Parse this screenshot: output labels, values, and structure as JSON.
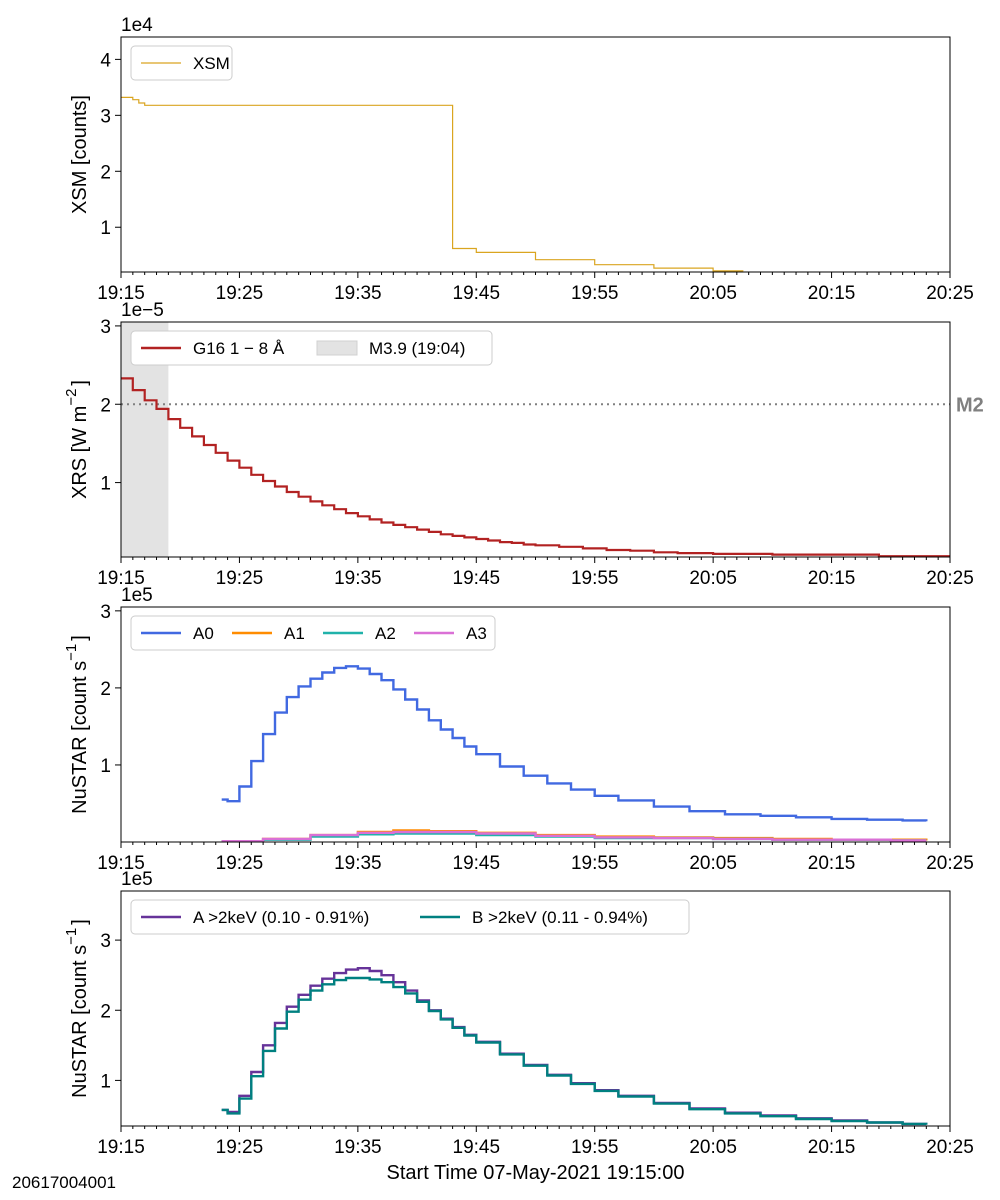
{
  "figure": {
    "xlabel": "Start Time 07-May-2021 19:15:00",
    "id_label": "20617004001",
    "x_tick_labels": [
      "19:15",
      "19:25",
      "19:35",
      "19:45",
      "19:55",
      "20:05",
      "20:15",
      "20:25"
    ]
  },
  "chart_data": [
    {
      "type": "line",
      "ylabel": "XSM [counts]",
      "exponent_label": "1e4",
      "xlim": [
        "19:15",
        "20:25"
      ],
      "ylim": [
        0.2,
        4.4
      ],
      "y_ticks": [
        1,
        2,
        3,
        4
      ],
      "y_tick_labels": [
        "1",
        "2",
        "3",
        "4"
      ],
      "legend": {
        "position": "top-left",
        "entries": [
          {
            "label": "XSM",
            "color": "#DAA520"
          }
        ]
      },
      "series": [
        {
          "name": "XSM",
          "color": "#DAA520",
          "line_width": 1.2,
          "step": true,
          "x": [
            "19:15",
            "19:16",
            "19:16.5",
            "19:17",
            "19:17.5",
            "19:43",
            "19:43",
            "19:45",
            "19:50",
            "19:55",
            "20:00",
            "20:05",
            "20:07.5"
          ],
          "y": [
            3.32,
            3.28,
            3.22,
            3.18,
            3.18,
            3.18,
            0.62,
            0.55,
            0.42,
            0.33,
            0.27,
            0.22,
            0.21
          ]
        }
      ]
    },
    {
      "type": "line",
      "ylabel": "XRS [W m^-2]",
      "ylabel_parts": {
        "main": "XRS [W m",
        "exp": "−2",
        "close": "]"
      },
      "exponent_label": "1e−5",
      "xlim": [
        "19:15",
        "20:25"
      ],
      "ylim": [
        0.05,
        3.05
      ],
      "y_ticks": [
        1,
        2,
        3
      ],
      "y_tick_labels": [
        "1",
        "2",
        "3"
      ],
      "shaded_region": {
        "x": [
          "19:15",
          "19:19"
        ],
        "label": "M3.9 (19:04)",
        "color": "#e3e3e3"
      },
      "threshold": {
        "y": 2.0,
        "label": "M2",
        "color": "#808080"
      },
      "legend": {
        "position": "top-left",
        "entries": [
          {
            "label": "G16 1 − 8 Å",
            "color": "#B22222",
            "kind": "line"
          },
          {
            "label": "M3.9 (19:04)",
            "color": "#e3e3e3",
            "kind": "patch"
          }
        ]
      },
      "series": [
        {
          "name": "G16 1 − 8 Å",
          "color": "#B22222",
          "line_width": 2.2,
          "step": true,
          "x": [
            "19:15",
            "19:16",
            "19:17",
            "19:18",
            "19:19",
            "19:20",
            "19:21",
            "19:22",
            "19:23",
            "19:24",
            "19:25",
            "19:26",
            "19:27",
            "19:28",
            "19:29",
            "19:30",
            "19:31",
            "19:32",
            "19:33",
            "19:34",
            "19:35",
            "19:36",
            "19:37",
            "19:38",
            "19:39",
            "19:40",
            "19:41",
            "19:42",
            "19:43",
            "19:44",
            "19:45",
            "19:46",
            "19:47",
            "19:48",
            "19:49",
            "19:50",
            "19:52",
            "19:54",
            "19:56",
            "19:58",
            "20:00",
            "20:02",
            "20:05",
            "20:08",
            "20:10",
            "20:15",
            "20:19",
            "20:25"
          ],
          "y": [
            2.33,
            2.18,
            2.05,
            1.94,
            1.81,
            1.7,
            1.59,
            1.48,
            1.38,
            1.28,
            1.19,
            1.1,
            1.02,
            0.95,
            0.88,
            0.82,
            0.76,
            0.71,
            0.66,
            0.61,
            0.57,
            0.53,
            0.49,
            0.46,
            0.43,
            0.4,
            0.37,
            0.34,
            0.32,
            0.3,
            0.28,
            0.26,
            0.24,
            0.23,
            0.21,
            0.2,
            0.18,
            0.16,
            0.14,
            0.13,
            0.11,
            0.1,
            0.09,
            0.09,
            0.08,
            0.08,
            0.06,
            0.06
          ]
        }
      ]
    },
    {
      "type": "line",
      "ylabel": "NuSTAR [count s^-1]",
      "ylabel_parts": {
        "main": "NuSTAR [count s",
        "exp": "−1",
        "close": "]"
      },
      "exponent_label": "1e5",
      "xlim": [
        "19:15",
        "20:25"
      ],
      "ylim": [
        0,
        3.05
      ],
      "y_ticks": [
        1,
        2,
        3
      ],
      "y_tick_labels": [
        "1",
        "2",
        "3"
      ],
      "legend": {
        "position": "top",
        "entries": [
          {
            "label": "A0",
            "color": "#4169E1"
          },
          {
            "label": "A1",
            "color": "#FF8C00"
          },
          {
            "label": "A2",
            "color": "#20B2AA"
          },
          {
            "label": "A3",
            "color": "#DA70D6"
          }
        ]
      },
      "series": [
        {
          "name": "A0",
          "color": "#4169E1",
          "line_width": 2.4,
          "step": true,
          "x": [
            "19:23.5",
            "19:24",
            "19:25",
            "19:26",
            "19:27",
            "19:28",
            "19:29",
            "19:30",
            "19:31",
            "19:32",
            "19:33",
            "19:34",
            "19:35",
            "19:36",
            "19:37",
            "19:38",
            "19:39",
            "19:40",
            "19:41",
            "19:42",
            "19:43",
            "19:44",
            "19:45",
            "19:47",
            "19:49",
            "19:51",
            "19:53",
            "19:55",
            "19:57",
            "20:00",
            "20:03",
            "20:06",
            "20:09",
            "20:12",
            "20:15",
            "20:18",
            "20:21",
            "20:23"
          ],
          "y": [
            0.55,
            0.53,
            0.72,
            1.05,
            1.4,
            1.68,
            1.88,
            2.02,
            2.12,
            2.2,
            2.26,
            2.28,
            2.25,
            2.18,
            2.1,
            1.98,
            1.85,
            1.72,
            1.58,
            1.46,
            1.35,
            1.24,
            1.14,
            0.98,
            0.86,
            0.76,
            0.68,
            0.6,
            0.54,
            0.46,
            0.4,
            0.36,
            0.34,
            0.32,
            0.3,
            0.29,
            0.28,
            0.27
          ]
        },
        {
          "name": "A1",
          "color": "#FF8C00",
          "line_width": 2.4,
          "step": true,
          "x": [
            "19:23.5",
            "19:27",
            "19:31",
            "19:35",
            "19:38",
            "19:41",
            "19:45",
            "19:50",
            "19:55",
            "20:00",
            "20:05",
            "20:10",
            "20:15",
            "20:20",
            "20:23"
          ],
          "y": [
            0.01,
            0.04,
            0.09,
            0.13,
            0.15,
            0.14,
            0.12,
            0.09,
            0.07,
            0.06,
            0.05,
            0.04,
            0.03,
            0.03,
            0.02
          ]
        },
        {
          "name": "A2",
          "color": "#20B2AA",
          "line_width": 2.4,
          "step": true,
          "x": [
            "19:23.5",
            "19:27",
            "19:31",
            "19:35",
            "19:38",
            "19:41",
            "19:45",
            "19:50",
            "19:55",
            "20:00",
            "20:05",
            "20:10",
            "20:15",
            "20:20",
            "20:23"
          ],
          "y": [
            0.01,
            0.03,
            0.07,
            0.1,
            0.11,
            0.11,
            0.09,
            0.07,
            0.05,
            0.05,
            0.04,
            0.03,
            0.03,
            0.02,
            0.02
          ]
        },
        {
          "name": "A3",
          "color": "#DA70D6",
          "line_width": 2.4,
          "step": true,
          "x": [
            "19:23.5",
            "19:27",
            "19:31",
            "19:35",
            "19:38",
            "19:41",
            "19:45",
            "19:50",
            "19:55",
            "20:00",
            "20:05",
            "20:10",
            "20:15",
            "20:20",
            "20:23"
          ],
          "y": [
            0.01,
            0.04,
            0.09,
            0.12,
            0.13,
            0.13,
            0.11,
            0.08,
            0.06,
            0.05,
            0.04,
            0.03,
            0.03,
            0.02,
            0.02
          ]
        }
      ]
    },
    {
      "type": "line",
      "ylabel": "NuSTAR [count s^-1]",
      "ylabel_parts": {
        "main": "NuSTAR [count s",
        "exp": "−1",
        "close": "]"
      },
      "exponent_label": "1e5",
      "xlim": [
        "19:15",
        "20:25"
      ],
      "ylim": [
        0.35,
        3.7
      ],
      "y_ticks": [
        1,
        2,
        3
      ],
      "y_tick_labels": [
        "1",
        "2",
        "3"
      ],
      "legend": {
        "position": "top",
        "entries": [
          {
            "label": "A >2keV (0.10 - 0.91%)",
            "color": "#663399"
          },
          {
            "label": "B >2keV (0.11 - 0.94%)",
            "color": "#008080"
          }
        ]
      },
      "series": [
        {
          "name": "A >2keV (0.10 - 0.91%)",
          "color": "#663399",
          "line_width": 2.4,
          "step": true,
          "x": [
            "19:23.5",
            "19:24",
            "19:25",
            "19:26",
            "19:27",
            "19:28",
            "19:29",
            "19:30",
            "19:31",
            "19:32",
            "19:33",
            "19:34",
            "19:35",
            "19:36",
            "19:37",
            "19:38",
            "19:39",
            "19:40",
            "19:41",
            "19:42",
            "19:43",
            "19:44",
            "19:45",
            "19:47",
            "19:49",
            "19:51",
            "19:53",
            "19:55",
            "19:57",
            "20:00",
            "20:03",
            "20:06",
            "20:09",
            "20:12",
            "20:15",
            "20:18",
            "20:21",
            "20:23"
          ],
          "y": [
            0.58,
            0.55,
            0.78,
            1.12,
            1.5,
            1.82,
            2.05,
            2.22,
            2.35,
            2.45,
            2.53,
            2.58,
            2.6,
            2.56,
            2.5,
            2.4,
            2.28,
            2.14,
            2.0,
            1.88,
            1.76,
            1.65,
            1.55,
            1.38,
            1.22,
            1.08,
            0.96,
            0.86,
            0.78,
            0.68,
            0.6,
            0.54,
            0.5,
            0.46,
            0.43,
            0.4,
            0.38,
            0.37
          ]
        },
        {
          "name": "B >2keV (0.11 - 0.94%)",
          "color": "#008080",
          "line_width": 2.4,
          "step": true,
          "x": [
            "19:23.5",
            "19:24",
            "19:25",
            "19:26",
            "19:27",
            "19:28",
            "19:29",
            "19:30",
            "19:31",
            "19:32",
            "19:33",
            "19:34",
            "19:35",
            "19:36",
            "19:37",
            "19:38",
            "19:39",
            "19:40",
            "19:41",
            "19:42",
            "19:43",
            "19:44",
            "19:45",
            "19:47",
            "19:49",
            "19:51",
            "19:53",
            "19:55",
            "19:57",
            "20:00",
            "20:03",
            "20:06",
            "20:09",
            "20:12",
            "20:15",
            "20:18",
            "20:21",
            "20:23"
          ],
          "y": [
            0.58,
            0.53,
            0.74,
            1.06,
            1.42,
            1.74,
            1.98,
            2.15,
            2.28,
            2.37,
            2.43,
            2.46,
            2.46,
            2.44,
            2.4,
            2.33,
            2.24,
            2.12,
            1.99,
            1.87,
            1.75,
            1.64,
            1.54,
            1.37,
            1.21,
            1.07,
            0.95,
            0.85,
            0.77,
            0.67,
            0.59,
            0.53,
            0.49,
            0.45,
            0.42,
            0.4,
            0.38,
            0.37
          ]
        }
      ]
    }
  ]
}
